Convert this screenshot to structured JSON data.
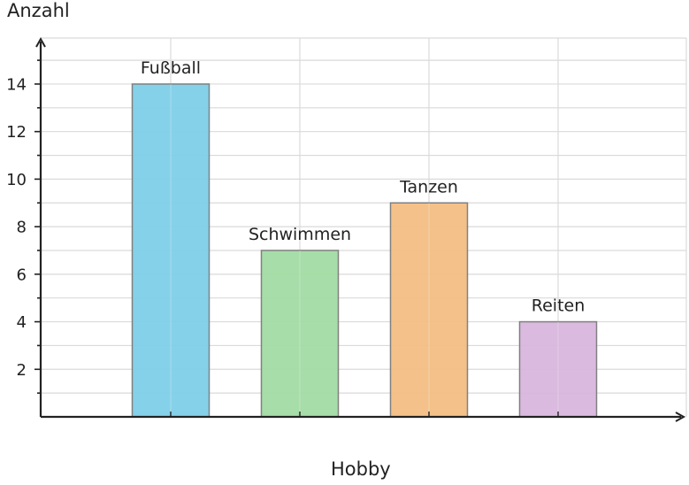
{
  "chart_data": {
    "type": "bar",
    "title": "",
    "xlabel": "Hobby",
    "ylabel": "Anzahl",
    "categories": [
      "Fußball",
      "Schwimmen",
      "Tanzen",
      "Reiten"
    ],
    "values": [
      14,
      7,
      9,
      4
    ],
    "colors": [
      "#7ecfe8",
      "#a2dba3",
      "#f3be84",
      "#d8b6dc"
    ],
    "bar_edge_color": "#808080",
    "ylim": [
      0,
      15
    ],
    "yticks": [
      2,
      4,
      6,
      8,
      10,
      12,
      14
    ],
    "grid": true,
    "data_labels": "category names above bars"
  }
}
